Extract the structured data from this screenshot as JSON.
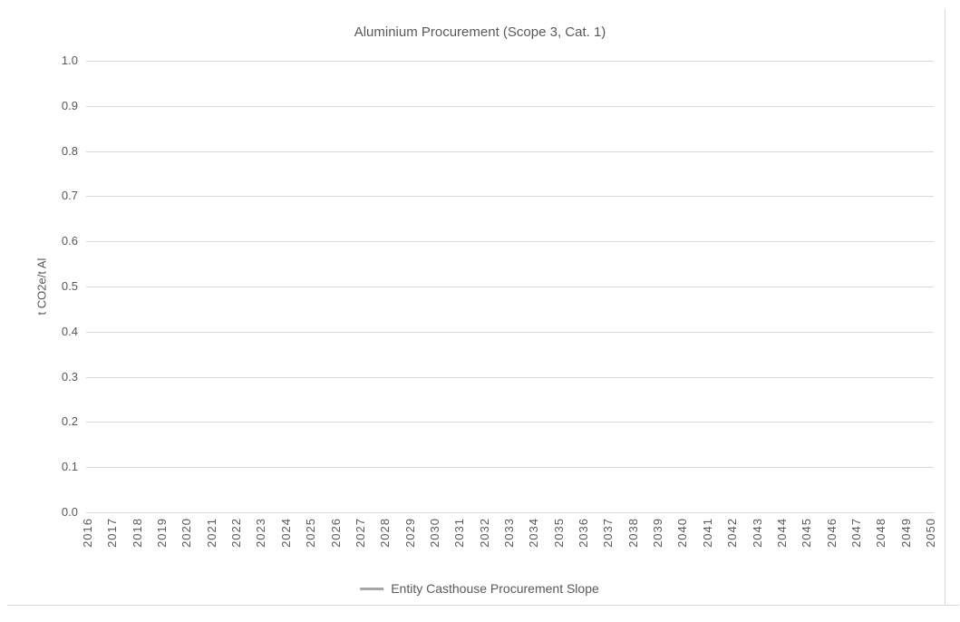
{
  "chart_data": {
    "type": "line",
    "title": "Aluminium Procurement (Scope 3, Cat. 1)",
    "xlabel": "",
    "ylabel": "t CO2e/t Al",
    "categories": [
      "2016",
      "2017",
      "2018",
      "2019",
      "2020",
      "2021",
      "2022",
      "2023",
      "2024",
      "2025",
      "2026",
      "2027",
      "2028",
      "2029",
      "2030",
      "2031",
      "2032",
      "2033",
      "2034",
      "2035",
      "2036",
      "2037",
      "2038",
      "2039",
      "2040",
      "2041",
      "2042",
      "2043",
      "2044",
      "2045",
      "2046",
      "2047",
      "2048",
      "2049",
      "2050"
    ],
    "series": [
      {
        "name": "Entity Casthouse Procurement Slope",
        "color": "#a6a6a6",
        "values": []
      }
    ],
    "plot_empty": true,
    "ylim": [
      0.0,
      1.0
    ],
    "ytick_labels": [
      "0.0",
      "0.1",
      "0.2",
      "0.3",
      "0.4",
      "0.5",
      "0.6",
      "0.7",
      "0.8",
      "0.9",
      "1.0"
    ],
    "grid": "horizontal",
    "legend_position": "bottom"
  },
  "colors": {
    "text": "#595959",
    "gridline": "#d9d9d9",
    "chart_border": "#d9d9d9",
    "legend_line": "#a6a6a6",
    "background": "#ffffff"
  }
}
